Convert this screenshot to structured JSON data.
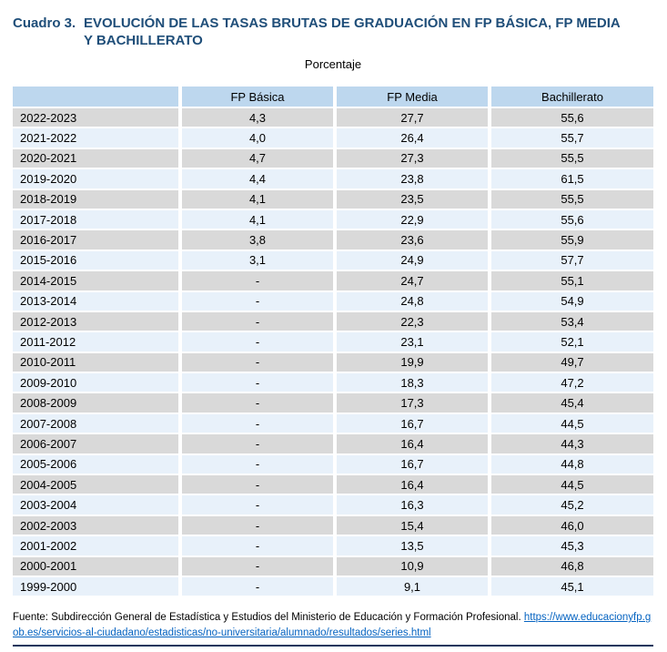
{
  "title": {
    "prefix": "Cuadro 3.",
    "line1": "EVOLUCIÓN DE LAS TASAS BRUTAS DE GRADUACIÓN EN FP BÁSICA, FP MEDIA",
    "line2": "Y BACHILLERATO"
  },
  "subtitle": "Porcentaje",
  "table": {
    "columns": [
      "",
      "FP Básica",
      "FP Media",
      "Bachillerato"
    ],
    "rows": [
      [
        "2022-2023",
        "4,3",
        "27,7",
        "55,6"
      ],
      [
        "2021-2022",
        "4,0",
        "26,4",
        "55,7"
      ],
      [
        "2020-2021",
        "4,7",
        "27,3",
        "55,5"
      ],
      [
        "2019-2020",
        "4,4",
        "23,8",
        "61,5"
      ],
      [
        "2018-2019",
        "4,1",
        "23,5",
        "55,5"
      ],
      [
        "2017-2018",
        "4,1",
        "22,9",
        "55,6"
      ],
      [
        "2016-2017",
        "3,8",
        "23,6",
        "55,9"
      ],
      [
        "2015-2016",
        "3,1",
        "24,9",
        "57,7"
      ],
      [
        "2014-2015",
        "-",
        "24,7",
        "55,1"
      ],
      [
        "2013-2014",
        "-",
        "24,8",
        "54,9"
      ],
      [
        "2012-2013",
        "-",
        "22,3",
        "53,4"
      ],
      [
        "2011-2012",
        "-",
        "23,1",
        "52,1"
      ],
      [
        "2010-2011",
        "-",
        "19,9",
        "49,7"
      ],
      [
        "2009-2010",
        "-",
        "18,3",
        "47,2"
      ],
      [
        "2008-2009",
        "-",
        "17,3",
        "45,4"
      ],
      [
        "2007-2008",
        "-",
        "16,7",
        "44,5"
      ],
      [
        "2006-2007",
        "-",
        "16,4",
        "44,3"
      ],
      [
        "2005-2006",
        "-",
        "16,7",
        "44,8"
      ],
      [
        "2004-2005",
        "-",
        "16,4",
        "44,5"
      ],
      [
        "2003-2004",
        "-",
        "16,3",
        "45,2"
      ],
      [
        "2002-2003",
        "-",
        "15,4",
        "46,0"
      ],
      [
        "2001-2002",
        "-",
        "13,5",
        "45,3"
      ],
      [
        "2000-2001",
        "-",
        "10,9",
        "46,8"
      ],
      [
        "1999-2000",
        "-",
        "9,1",
        "45,1"
      ]
    ]
  },
  "source": {
    "prefix": "Fuente: Subdirección General de Estadística y Estudios del Ministerio de Educación y Formación Profesional. ",
    "link_text": "https://www.educacionyfp.gob.es/servicios-al-ciudadano/estadisticas/no-universitaria/alumnado/resultados/series.html"
  },
  "colors": {
    "title_blue": "#1F4E79",
    "header_bg": "#BDD7EE",
    "row_gray": "#D9D9D9",
    "row_blue": "#E8F1FA",
    "link_blue": "#0563C1",
    "rule_navy": "#17365D"
  }
}
